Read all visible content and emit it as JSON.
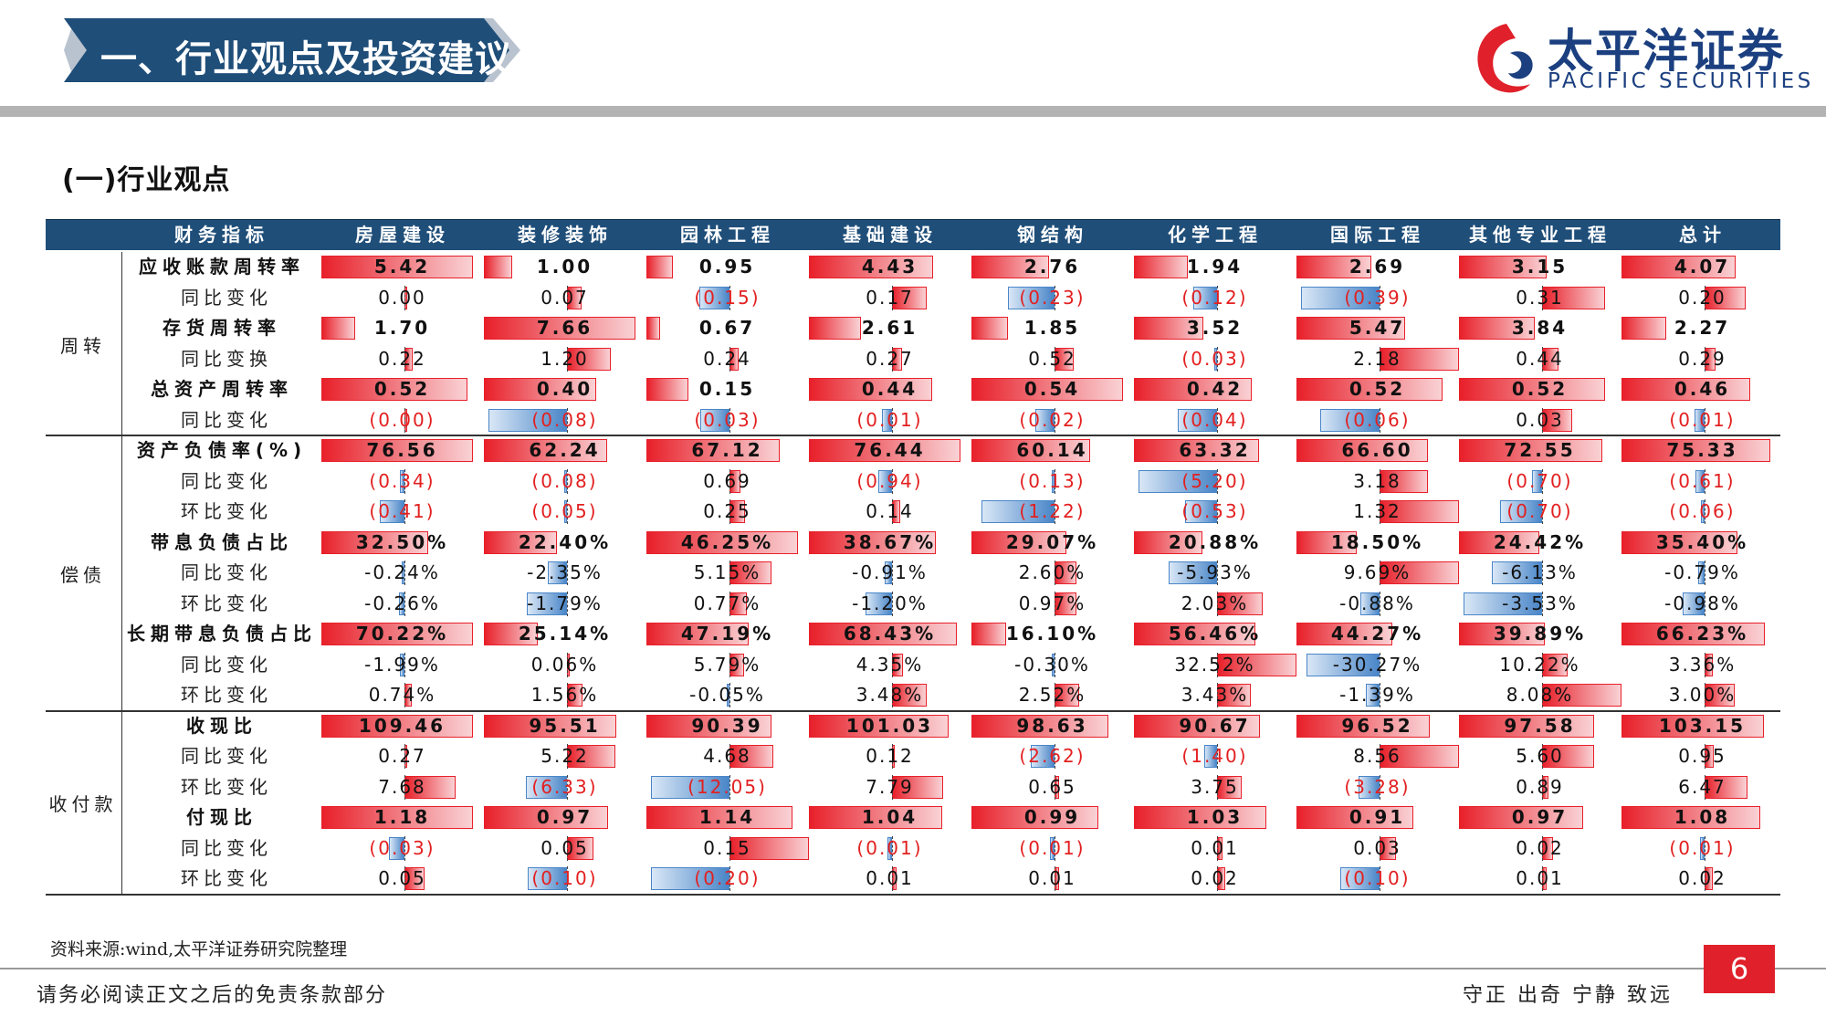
{
  "header": {
    "title": "一、行业观点及投资建议",
    "logo_cn": "太平洋证券",
    "logo_en": "PACIFIC SECURITIES",
    "banner_color": "#1f4e79",
    "logo_red": "#e0202a",
    "logo_blue": "#1b3f7f"
  },
  "section_title": "(一)行业观点",
  "table": {
    "columns": [
      "财务指标",
      "房屋建设",
      "装修装饰",
      "园林工程",
      "基础建设",
      "钢结构",
      "化学工程",
      "国际工程",
      "其他专业工程",
      "总计"
    ],
    "groups": [
      {
        "label": "周转",
        "rows": [
          {
            "label": "应收账款周转率",
            "main": true,
            "values": [
              "5.42",
              "1.00",
              "0.95",
              "4.43",
              "2.76",
              "1.94",
              "2.69",
              "3.15",
              "4.07"
            ]
          },
          {
            "label": "同比变化",
            "main": false,
            "values": [
              "0.00",
              "0.07",
              "(0.15)",
              "0.17",
              "(0.23)",
              "(0.12)",
              "(0.39)",
              "0.31",
              "0.20"
            ]
          },
          {
            "label": "存货周转率",
            "main": true,
            "values": [
              "1.70",
              "7.66",
              "0.67",
              "2.61",
              "1.85",
              "3.52",
              "5.47",
              "3.84",
              "2.27"
            ]
          },
          {
            "label": "同比变换",
            "main": false,
            "values": [
              "0.22",
              "1.20",
              "0.24",
              "0.27",
              "0.52",
              "(0.03)",
              "2.18",
              "0.44",
              "0.29"
            ]
          },
          {
            "label": "总资产周转率",
            "main": true,
            "values": [
              "0.52",
              "0.40",
              "0.15",
              "0.44",
              "0.54",
              "0.42",
              "0.52",
              "0.52",
              "0.46"
            ]
          },
          {
            "label": "同比变化",
            "main": false,
            "values": [
              "(0.00)",
              "(0.08)",
              "(0.03)",
              "(0.01)",
              "(0.02)",
              "(0.04)",
              "(0.06)",
              "0.03",
              "(0.01)"
            ]
          }
        ]
      },
      {
        "label": "偿债",
        "rows": [
          {
            "label": "资产负债率(%)",
            "main": true,
            "values": [
              "76.56",
              "62.24",
              "67.12",
              "76.44",
              "60.14",
              "63.32",
              "66.60",
              "72.55",
              "75.33"
            ]
          },
          {
            "label": "同比变化",
            "main": false,
            "values": [
              "(0.34)",
              "(0.08)",
              "0.69",
              "(0.94)",
              "(0.13)",
              "(5.20)",
              "3.18",
              "(0.70)",
              "(0.61)"
            ]
          },
          {
            "label": "环比变化",
            "main": false,
            "values": [
              "(0.41)",
              "(0.05)",
              "0.25",
              "0.14",
              "(1.22)",
              "(0.53)",
              "1.32",
              "(0.70)",
              "(0.06)"
            ]
          },
          {
            "label": "带息负债占比",
            "main": true,
            "values": [
              "32.50%",
              "22.40%",
              "46.25%",
              "38.67%",
              "29.07%",
              "20.88%",
              "18.50%",
              "24.42%",
              "35.40%"
            ]
          },
          {
            "label": "同比变化",
            "main": false,
            "values": [
              "-0.24%",
              "-2.35%",
              "5.15%",
              "-0.91%",
              "2.60%",
              "-5.93%",
              "9.69%",
              "-6.13%",
              "-0.79%"
            ]
          },
          {
            "label": "环比变化",
            "main": false,
            "values": [
              "-0.26%",
              "-1.79%",
              "0.77%",
              "-1.20%",
              "0.97%",
              "2.03%",
              "-0.88%",
              "-3.53%",
              "-0.98%"
            ]
          },
          {
            "label": "长期带息负债占比",
            "main": true,
            "values": [
              "70.22%",
              "25.14%",
              "47.19%",
              "68.43%",
              "16.10%",
              "56.46%",
              "44.27%",
              "39.89%",
              "66.23%"
            ]
          },
          {
            "label": "同比变化",
            "main": false,
            "values": [
              "-1.99%",
              "0.06%",
              "5.79%",
              "4.35%",
              "-0.30%",
              "32.52%",
              "-30.27%",
              "10.22%",
              "3.36%"
            ]
          },
          {
            "label": "环比变化",
            "main": false,
            "values": [
              "0.74%",
              "1.56%",
              "-0.05%",
              "3.48%",
              "2.52%",
              "3.43%",
              "-1.39%",
              "8.08%",
              "3.00%"
            ]
          }
        ]
      },
      {
        "label": "收付款",
        "rows": [
          {
            "label": "收现比",
            "main": true,
            "values": [
              "109.46",
              "95.51",
              "90.39",
              "101.03",
              "98.63",
              "90.67",
              "96.52",
              "97.58",
              "103.15"
            ]
          },
          {
            "label": "同比变化",
            "main": false,
            "values": [
              "0.27",
              "5.22",
              "4.68",
              "0.12",
              "(2.62)",
              "(1.40)",
              "8.56",
              "5.60",
              "0.95"
            ]
          },
          {
            "label": "环比变化",
            "main": false,
            "values": [
              "7.68",
              "(6.33)",
              "(12.05)",
              "7.79",
              "0.65",
              "3.75",
              "(3.28)",
              "0.89",
              "6.47"
            ]
          },
          {
            "label": "付现比",
            "main": true,
            "values": [
              "1.18",
              "0.97",
              "1.14",
              "1.04",
              "0.99",
              "1.03",
              "0.91",
              "0.97",
              "1.08"
            ]
          },
          {
            "label": "同比变化",
            "main": false,
            "values": [
              "(0.03)",
              "0.05",
              "0.15",
              "(0.01)",
              "(0.01)",
              "0.01",
              "0.03",
              "0.02",
              "(0.01)"
            ]
          },
          {
            "label": "环比变化",
            "main": false,
            "values": [
              "0.05",
              "(0.10)",
              "(0.20)",
              "0.01",
              "0.01",
              "0.02",
              "(0.10)",
              "0.01",
              "0.02"
            ]
          }
        ]
      }
    ]
  },
  "source": "资料来源:wind,太平洋证券研究院整理",
  "footer": {
    "disclaimer": "请务必阅读正文之后的免责条款部分",
    "motto": "守正 出奇 宁静 致远",
    "page": "6"
  }
}
